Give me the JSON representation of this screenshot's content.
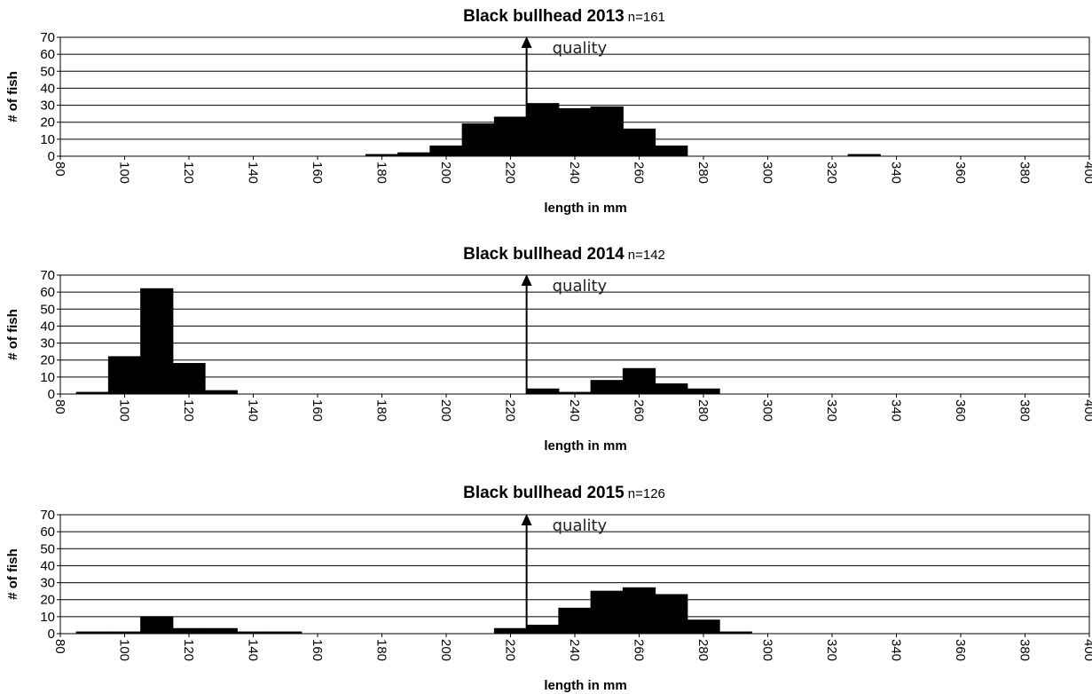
{
  "chart_data": [
    {
      "type": "bar",
      "title": "Black bullhead 2013",
      "subtitle": "n=161",
      "xlabel": "length in mm",
      "ylabel": "# of fish",
      "ylim": [
        0,
        70
      ],
      "yticks": [
        0,
        10,
        20,
        30,
        40,
        50,
        60,
        70
      ],
      "xlim": [
        80,
        400
      ],
      "xticks": [
        80,
        100,
        120,
        140,
        160,
        180,
        200,
        220,
        240,
        260,
        280,
        300,
        320,
        340,
        360,
        380,
        400
      ],
      "grid": true,
      "bin_width": 10,
      "bins": [
        180,
        190,
        200,
        210,
        220,
        230,
        240,
        250,
        260,
        270,
        330
      ],
      "values": [
        1,
        2,
        6,
        19,
        23,
        31,
        28,
        29,
        16,
        6,
        1
      ],
      "annotation": {
        "text": "quality",
        "x": 225
      }
    },
    {
      "type": "bar",
      "title": "Black bullhead 2014",
      "subtitle": "n=142",
      "xlabel": "length in mm",
      "ylabel": "# of fish",
      "ylim": [
        0,
        70
      ],
      "yticks": [
        0,
        10,
        20,
        30,
        40,
        50,
        60,
        70
      ],
      "xlim": [
        80,
        400
      ],
      "xticks": [
        80,
        100,
        120,
        140,
        160,
        180,
        200,
        220,
        240,
        260,
        280,
        300,
        320,
        340,
        360,
        380,
        400
      ],
      "grid": true,
      "bin_width": 10,
      "bins": [
        90,
        100,
        110,
        120,
        130,
        230,
        240,
        250,
        260,
        270,
        280
      ],
      "values": [
        1,
        22,
        62,
        18,
        2,
        3,
        1,
        8,
        15,
        6,
        3
      ],
      "annotation": {
        "text": "quality",
        "x": 225
      }
    },
    {
      "type": "bar",
      "title": "Black bullhead 2015",
      "subtitle": "n=126",
      "xlabel": "length in mm",
      "ylabel": "# of fish",
      "ylim": [
        0,
        70
      ],
      "yticks": [
        0,
        10,
        20,
        30,
        40,
        50,
        60,
        70
      ],
      "xlim": [
        80,
        400
      ],
      "xticks": [
        80,
        100,
        120,
        140,
        160,
        180,
        200,
        220,
        240,
        260,
        280,
        300,
        320,
        340,
        360,
        380,
        400
      ],
      "grid": true,
      "bin_width": 10,
      "bins": [
        90,
        100,
        110,
        120,
        130,
        140,
        150,
        220,
        230,
        240,
        250,
        260,
        270,
        280,
        290
      ],
      "values": [
        1,
        1,
        10,
        3,
        3,
        1,
        1,
        3,
        5,
        15,
        25,
        27,
        23,
        8,
        1
      ],
      "annotation": {
        "text": "quality",
        "x": 225
      }
    }
  ]
}
